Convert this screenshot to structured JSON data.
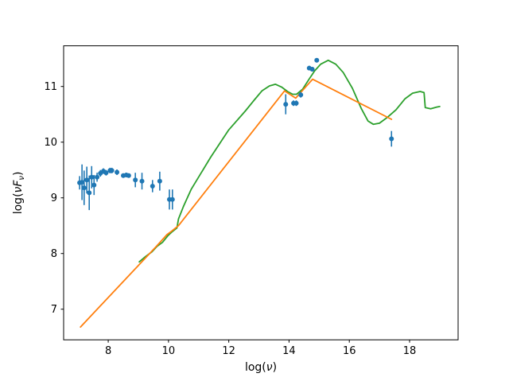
{
  "figure": {
    "background": "#ffffff"
  },
  "chart_data": {
    "type": "scatter",
    "title": "",
    "grid": false,
    "legend": null,
    "axis_color": "#000000",
    "xlabel_parts": [
      {
        "text": "log(",
        "italic": false,
        "sub": false
      },
      {
        "text": "ν",
        "italic": true,
        "sub": false
      },
      {
        "text": ")",
        "italic": false,
        "sub": false
      }
    ],
    "ylabel_parts": [
      {
        "text": "log(",
        "italic": false,
        "sub": false
      },
      {
        "text": "ν",
        "italic": true,
        "sub": false
      },
      {
        "text": "F",
        "italic": true,
        "sub": false
      },
      {
        "text": "ν",
        "italic": true,
        "sub": true
      },
      {
        "text": ")",
        "italic": false,
        "sub": false
      }
    ],
    "xlim": [
      6.52,
      19.61
    ],
    "ylim": [
      6.45,
      11.73
    ],
    "x_ticks": [
      8,
      10,
      12,
      14,
      16,
      18
    ],
    "y_ticks": [
      7,
      8,
      9,
      10,
      11
    ],
    "series": [
      {
        "name": "green-model-curve",
        "type": "line",
        "color": "#2ca02c",
        "points": [
          [
            9.03,
            7.85
          ],
          [
            9.25,
            7.95
          ],
          [
            9.45,
            8.03
          ],
          [
            9.62,
            8.13
          ],
          [
            9.8,
            8.2
          ],
          [
            9.98,
            8.32
          ],
          [
            10.12,
            8.39
          ],
          [
            10.28,
            8.46
          ],
          [
            10.33,
            8.62
          ],
          [
            10.5,
            8.85
          ],
          [
            10.75,
            9.15
          ],
          [
            11.4,
            9.73
          ],
          [
            12.0,
            10.22
          ],
          [
            12.55,
            10.56
          ],
          [
            12.85,
            10.76
          ],
          [
            13.1,
            10.92
          ],
          [
            13.35,
            11.01
          ],
          [
            13.55,
            11.04
          ],
          [
            13.75,
            10.99
          ],
          [
            13.95,
            10.91
          ],
          [
            14.12,
            10.86
          ],
          [
            14.25,
            10.86
          ],
          [
            14.45,
            10.95
          ],
          [
            14.65,
            11.12
          ],
          [
            14.85,
            11.28
          ],
          [
            15.05,
            11.4
          ],
          [
            15.3,
            11.47
          ],
          [
            15.55,
            11.4
          ],
          [
            15.8,
            11.25
          ],
          [
            16.1,
            10.97
          ],
          [
            16.4,
            10.6
          ],
          [
            16.62,
            10.38
          ],
          [
            16.8,
            10.32
          ],
          [
            17.0,
            10.34
          ],
          [
            17.25,
            10.44
          ],
          [
            17.55,
            10.58
          ],
          [
            17.85,
            10.78
          ],
          [
            18.1,
            10.88
          ],
          [
            18.35,
            10.91
          ],
          [
            18.48,
            10.89
          ],
          [
            18.52,
            10.62
          ],
          [
            18.7,
            10.6
          ],
          [
            18.9,
            10.63
          ],
          [
            19.0,
            10.64
          ]
        ]
      },
      {
        "name": "orange-model-curve",
        "type": "line",
        "color": "#ff7f0e",
        "points": [
          [
            7.08,
            6.68
          ],
          [
            9.6,
            8.13
          ],
          [
            9.95,
            8.34
          ],
          [
            10.1,
            8.4
          ],
          [
            10.33,
            8.5
          ],
          [
            13.85,
            10.92
          ],
          [
            14.22,
            10.79
          ],
          [
            14.78,
            11.13
          ],
          [
            17.4,
            10.41
          ]
        ]
      },
      {
        "name": "observed-points",
        "type": "scatter",
        "color": "#1f77b4",
        "marker": "circle",
        "points": [
          {
            "x": 7.05,
            "y": 9.27,
            "yerr": 0.12
          },
          {
            "x": 7.13,
            "y": 9.28,
            "yerr": 0.32
          },
          {
            "x": 7.2,
            "y": 9.18,
            "yerr": 0.31
          },
          {
            "x": 7.29,
            "y": 9.32,
            "yerr": 0.24
          },
          {
            "x": 7.37,
            "y": 9.09,
            "yerr": 0.31
          },
          {
            "x": 7.45,
            "y": 9.37,
            "yerr": 0.2
          },
          {
            "x": 7.53,
            "y": 9.23,
            "yerr": 0.18
          },
          {
            "x": 7.63,
            "y": 9.37,
            "yerr": 0.08
          },
          {
            "x": 7.74,
            "y": 9.44,
            "yerr": 0.06
          },
          {
            "x": 7.84,
            "y": 9.48,
            "yerr": 0.05
          },
          {
            "x": 7.93,
            "y": 9.45,
            "yerr": 0.05
          },
          {
            "x": 8.06,
            "y": 9.49,
            "yerr": 0.05
          },
          {
            "x": 8.12,
            "y": 9.49,
            "yerr": 0.05
          },
          {
            "x": 8.29,
            "y": 9.46,
            "yerr": 0.05
          },
          {
            "x": 8.5,
            "y": 9.4,
            "yerr": 0.04
          },
          {
            "x": 8.6,
            "y": 9.41,
            "yerr": 0.04
          },
          {
            "x": 8.68,
            "y": 9.4,
            "yerr": 0.04
          },
          {
            "x": 8.9,
            "y": 9.32,
            "yerr": 0.13
          },
          {
            "x": 9.12,
            "y": 9.3,
            "yerr": 0.15
          },
          {
            "x": 9.47,
            "y": 9.21,
            "yerr": 0.11
          },
          {
            "x": 9.71,
            "y": 9.3,
            "yerr": 0.17
          },
          {
            "x": 10.03,
            "y": 8.97,
            "yerr": 0.18
          },
          {
            "x": 10.13,
            "y": 8.97,
            "yerr": 0.18
          },
          {
            "x": 13.89,
            "y": 10.68,
            "yerr": 0.18
          },
          {
            "x": 14.15,
            "y": 10.7,
            "yerr": 0.05
          },
          {
            "x": 14.24,
            "y": 10.7,
            "yerr": 0.05
          },
          {
            "x": 14.39,
            "y": 10.85,
            "yerr": 0.05
          },
          {
            "x": 14.67,
            "y": 11.33,
            "yerr": 0.04
          },
          {
            "x": 14.77,
            "y": 11.31,
            "yerr": 0.04
          },
          {
            "x": 14.92,
            "y": 11.47,
            "yerr": 0.03
          },
          {
            "x": 17.4,
            "y": 10.06,
            "yerr": 0.14
          }
        ]
      }
    ]
  }
}
